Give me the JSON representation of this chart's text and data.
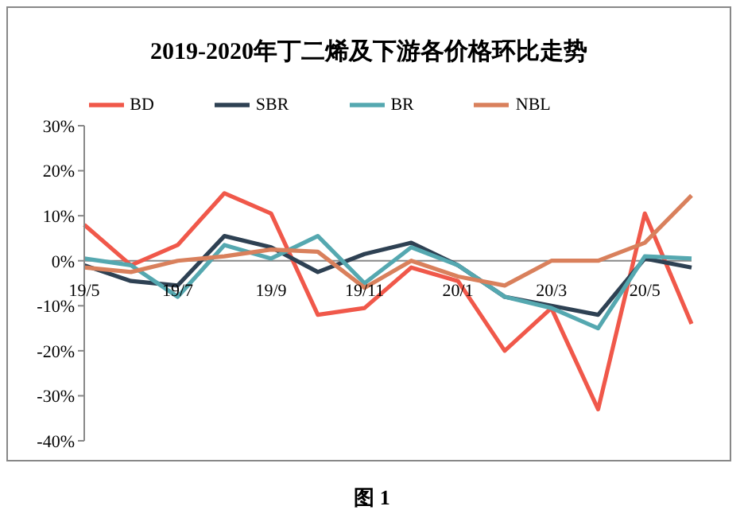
{
  "chart_data": {
    "type": "line",
    "title": "2019-2020年丁二烯及下游各价格环比走势",
    "categories": [
      "19/5",
      null,
      "19/7",
      null,
      "19/9",
      null,
      "19/11",
      null,
      "20/1",
      null,
      "20/3",
      null,
      "20/5",
      null
    ],
    "series": [
      {
        "name": "BD",
        "color": "#f0584a",
        "values": [
          8,
          -1,
          3.5,
          15,
          10.5,
          -12,
          -10.5,
          -1.5,
          -4.5,
          -20,
          -10.5,
          -33,
          10.5,
          -14
        ]
      },
      {
        "name": "SBR",
        "color": "#2e4153",
        "values": [
          -1,
          -4.5,
          -5.5,
          5.5,
          3,
          -2.5,
          1.5,
          4,
          -1,
          -8,
          -10,
          -12,
          0.5,
          -1.5
        ]
      },
      {
        "name": "BR",
        "color": "#55a8b0",
        "values": [
          0.5,
          -1,
          -8,
          3.5,
          0.5,
          5.5,
          -5,
          3,
          -1,
          -8,
          -10.5,
          -15,
          1,
          0.5
        ]
      },
      {
        "name": "NBL",
        "color": "#d9805c",
        "values": [
          -1.5,
          -2.5,
          0,
          1,
          2.5,
          2,
          -6,
          0,
          -3.5,
          -5.5,
          0,
          0,
          4,
          14.5
        ]
      }
    ],
    "ylim": [
      -40,
      30
    ],
    "yticks": [
      {
        "value": 30,
        "label": "30%"
      },
      {
        "value": 20,
        "label": "20%"
      },
      {
        "value": 10,
        "label": "10%"
      },
      {
        "value": 0,
        "label": "0%"
      },
      {
        "value": -10,
        "label": "-10%"
      },
      {
        "value": -20,
        "label": "-20%"
      },
      {
        "value": -30,
        "label": "-30%"
      },
      {
        "value": -40,
        "label": "-40%"
      }
    ],
    "legend": "top",
    "grid": false,
    "marker": "none",
    "line_style": "solid",
    "annotations": [
      "图 1"
    ]
  }
}
